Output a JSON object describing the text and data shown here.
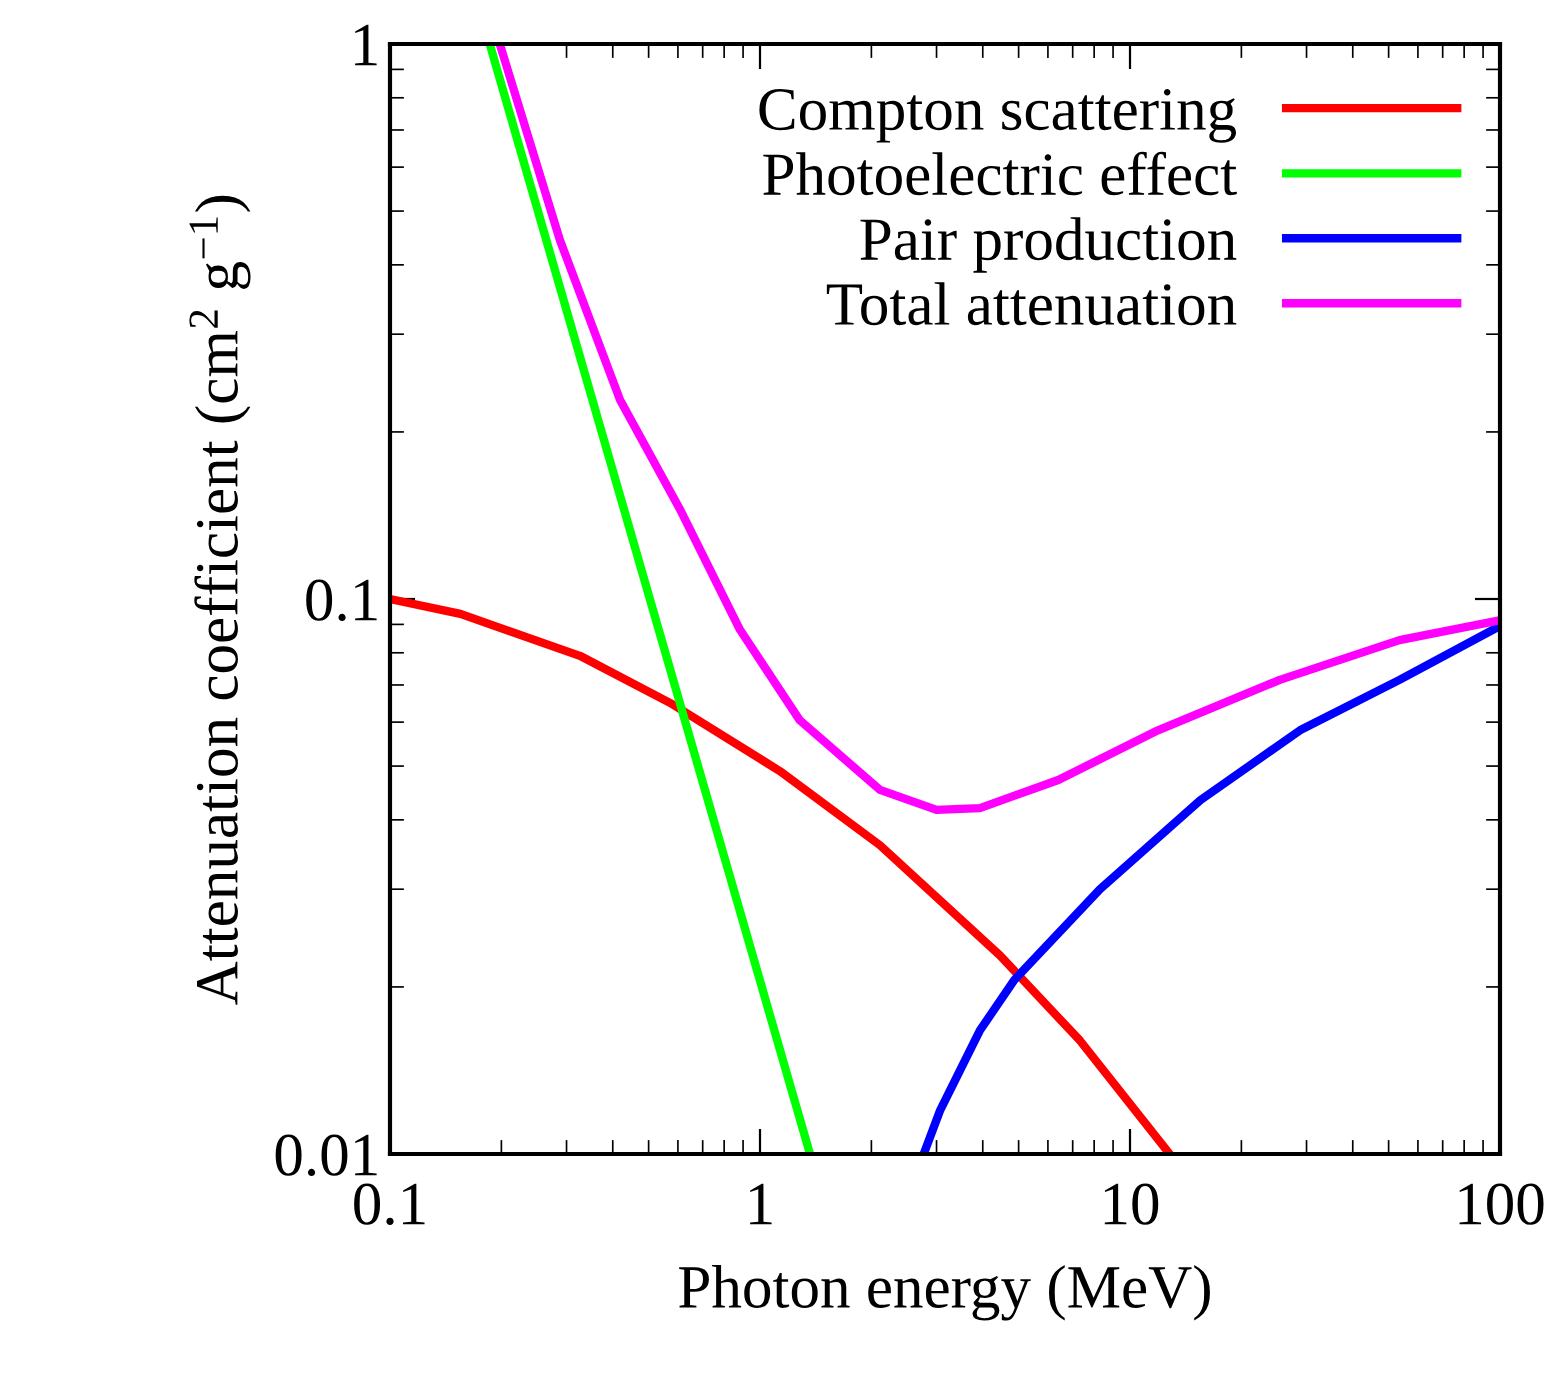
{
  "chart_data": {
    "type": "line",
    "xlabel": "Photon energy (MeV)",
    "ylabel": "Attenuation coefficient (cm$^{2}$ g$^{−1}$)",
    "log": "xy",
    "xlim": [
      0.1,
      100
    ],
    "ylim": [
      0.01,
      1
    ],
    "xticks": [
      0.1,
      1,
      10,
      100
    ],
    "yticks": [
      0.01,
      0.1,
      1
    ],
    "grid": false,
    "legend": "top right",
    "line_style": "solid",
    "marker": "none",
    "series": [
      {
        "name": "Compton scattering",
        "color": "#ff0000",
        "x": [
          0.1,
          0.155,
          0.326,
          0.571,
          1.13,
          2.11,
          4.45,
          7.33,
          12.8
        ],
        "values": [
          0.1,
          0.094,
          0.079,
          0.065,
          0.049,
          0.036,
          0.0228,
          0.016,
          0.01
        ]
      },
      {
        "name": "Photoelectric effect",
        "color": "#00ff00",
        "x": [
          0.186,
          1.365
        ],
        "values": [
          1,
          0.01
        ]
      },
      {
        "name": "Pair production",
        "color": "#0000ff",
        "x": [
          2.77,
          3.07,
          3.93,
          4.87,
          8.3,
          15.5,
          28.8,
          53.5,
          100
        ],
        "values": [
          0.01,
          0.012,
          0.0167,
          0.0206,
          0.03,
          0.0434,
          0.058,
          0.0715,
          0.0894
        ]
      },
      {
        "name": "Total attenuation",
        "color": "#ff00ff",
        "x": [
          0.198,
          0.288,
          0.419,
          0.608,
          0.883,
          1.28,
          2.11,
          3.0,
          3.93,
          6.4,
          11.9,
          25.4,
          53.5,
          100
        ],
        "values": [
          1,
          0.443,
          0.228,
          0.145,
          0.088,
          0.0605,
          0.0453,
          0.0417,
          0.042,
          0.0472,
          0.058,
          0.0715,
          0.0843,
          0.0916
        ]
      }
    ]
  }
}
